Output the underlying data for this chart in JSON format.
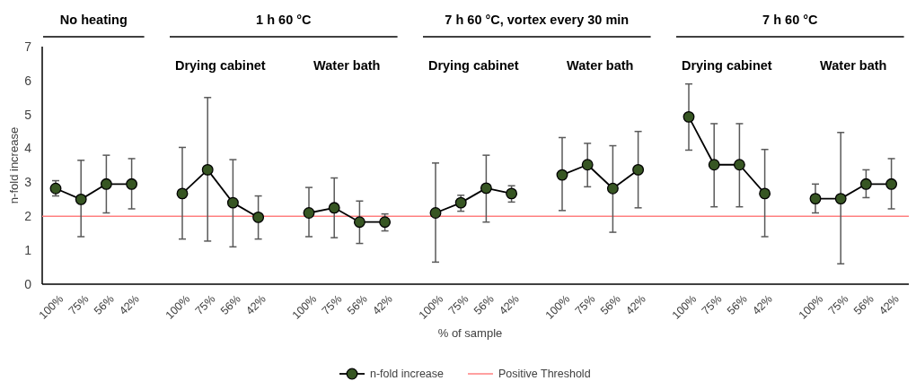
{
  "chart_data": {
    "type": "line",
    "xlabel": "% of sample",
    "ylabel": "n-fold increase",
    "categories": [
      "100%",
      "75%",
      "56%",
      "42%",
      null,
      "100%",
      "75%",
      "56%",
      "42%",
      null,
      "100%",
      "75%",
      "56%",
      "42%",
      null,
      "100%",
      "75%",
      "56%",
      "42%",
      null,
      "100%",
      "75%",
      "56%",
      "42%",
      null,
      "100%",
      "75%",
      "56%",
      "42%",
      null,
      "100%",
      "75%",
      "56%",
      "42%"
    ],
    "series": [
      {
        "name": "n-fold increase",
        "color": "#375623",
        "values": [
          2.82,
          2.5,
          2.95,
          2.95,
          null,
          2.67,
          3.37,
          2.4,
          1.97,
          null,
          2.1,
          2.25,
          1.83,
          1.83,
          null,
          2.1,
          2.4,
          2.83,
          2.67,
          null,
          3.22,
          3.52,
          2.82,
          3.37,
          null,
          4.93,
          3.52,
          3.52,
          2.67,
          null,
          2.52,
          2.52,
          2.95,
          2.95
        ],
        "errors": [
          [
            2.6,
            3.05
          ],
          [
            1.4,
            3.65
          ],
          [
            2.1,
            3.8
          ],
          [
            2.22,
            3.7
          ],
          null,
          [
            1.33,
            4.03
          ],
          [
            1.27,
            5.5
          ],
          [
            1.1,
            3.67
          ],
          [
            1.33,
            2.6
          ],
          null,
          [
            1.4,
            2.85
          ],
          [
            1.37,
            3.13
          ],
          [
            1.2,
            2.45
          ],
          [
            1.57,
            2.07
          ],
          null,
          [
            0.65,
            3.57
          ],
          [
            2.15,
            2.62
          ],
          [
            1.83,
            3.8
          ],
          [
            2.42,
            2.9
          ],
          null,
          [
            2.17,
            4.32
          ],
          [
            2.87,
            4.15
          ],
          [
            1.53,
            4.08
          ],
          [
            2.25,
            4.5
          ],
          null,
          [
            3.95,
            5.9
          ],
          [
            2.28,
            4.73
          ],
          [
            2.28,
            4.73
          ],
          [
            1.4,
            3.97
          ],
          null,
          [
            2.1,
            2.95
          ],
          [
            0.6,
            4.47
          ],
          [
            2.55,
            3.37
          ],
          [
            2.22,
            3.7
          ]
        ]
      }
    ],
    "ylim": [
      0,
      7
    ],
    "yticks": [
      0,
      1,
      2,
      3,
      4,
      5,
      6,
      7
    ],
    "grid": false,
    "marker": "circle",
    "line_style": "solid",
    "legend": "bottom",
    "ref_lines": [
      {
        "axis": "y",
        "value": 2,
        "label": "Positive Threshold",
        "color": "#ff8080"
      }
    ],
    "annotations": [
      "No heating",
      "1 h 60 °C",
      "7 h 60 °C, vortex every 30 min",
      "7 h 60 °C",
      "Drying cabinet",
      "Water bath",
      "Drying cabinet",
      "Water bath",
      "Drying cabinet",
      "Water bath"
    ]
  }
}
